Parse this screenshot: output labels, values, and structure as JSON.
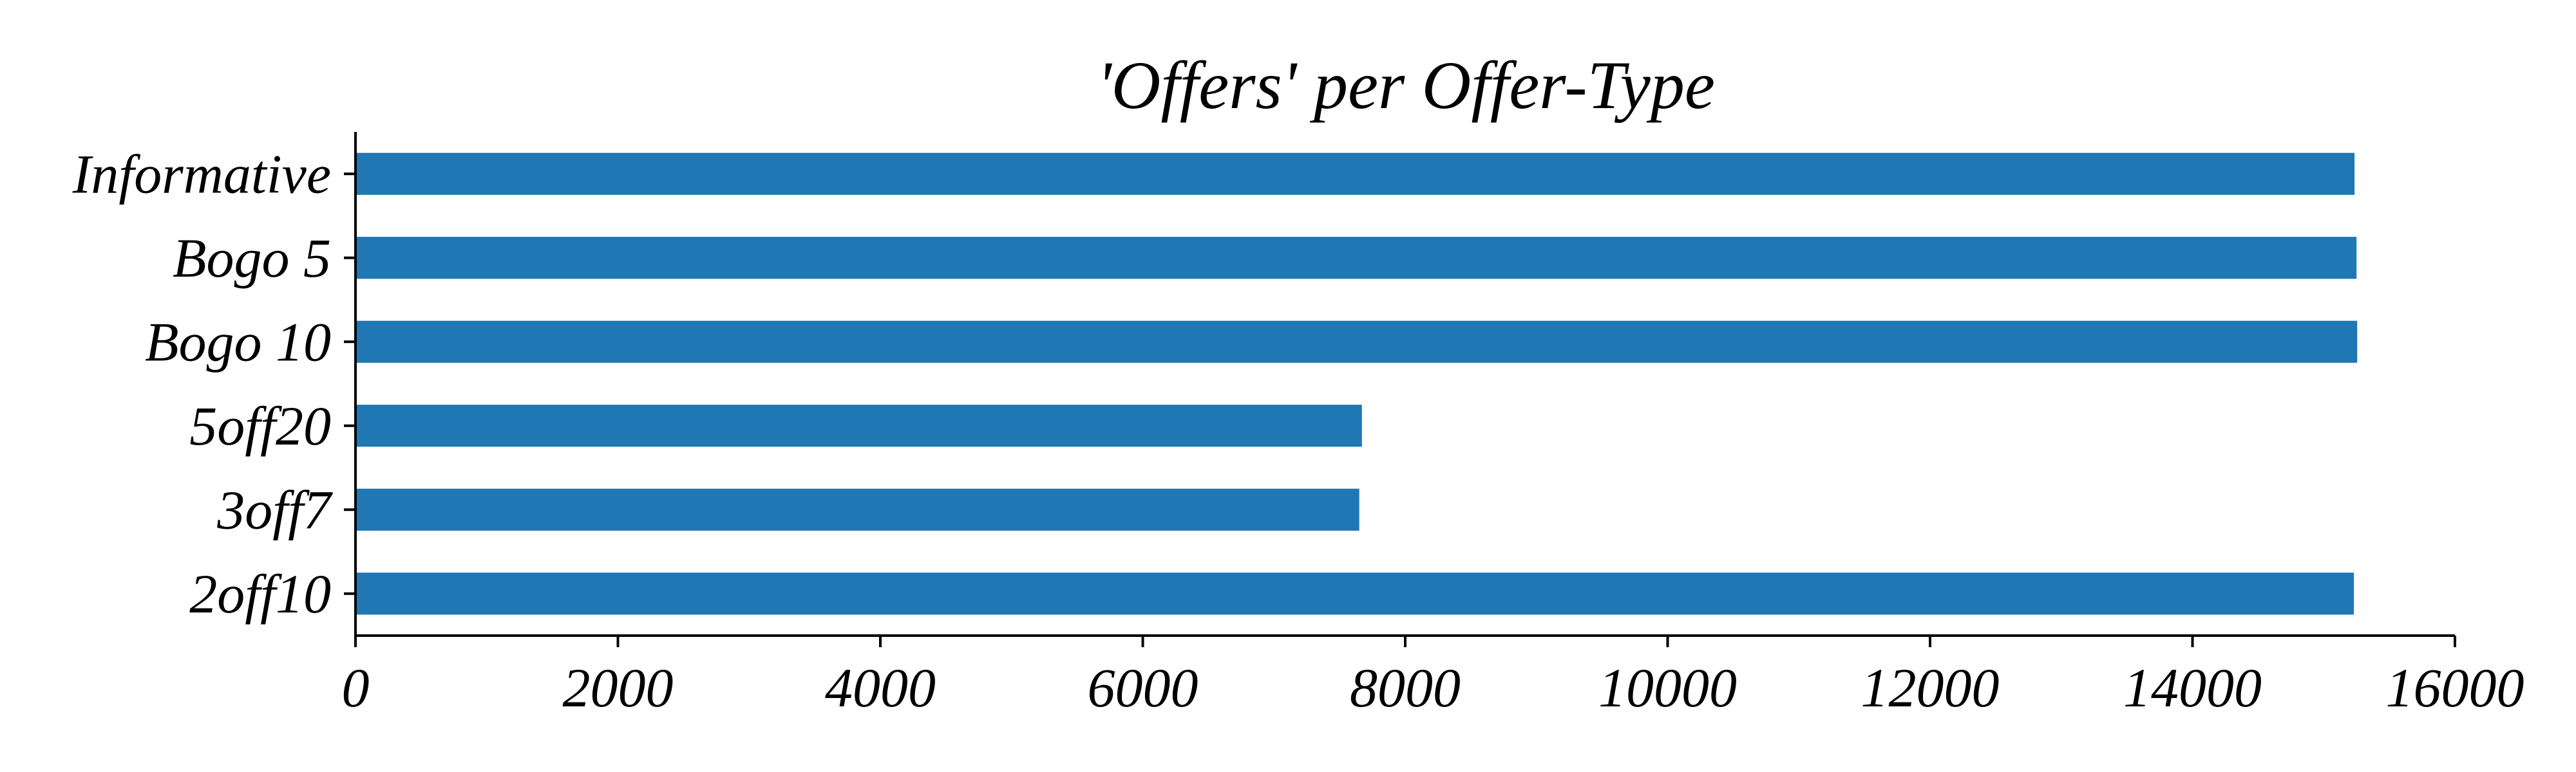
{
  "chart_data": {
    "type": "bar",
    "orientation": "horizontal",
    "title": "'Offers' per Offer-Type",
    "xlabel": "",
    "ylabel": "",
    "categories": [
      "2off10",
      "3off7",
      "5off20",
      "Bogo 10",
      "Bogo 5",
      "Informative"
    ],
    "values": [
      15230,
      7650,
      7670,
      15255,
      15250,
      15235
    ],
    "xlim": [
      0,
      16000
    ],
    "xticks": [
      0,
      2000,
      4000,
      6000,
      8000,
      10000,
      12000,
      14000,
      16000
    ],
    "grid": false,
    "legend": "none",
    "bar_color": "#1f77b4"
  }
}
